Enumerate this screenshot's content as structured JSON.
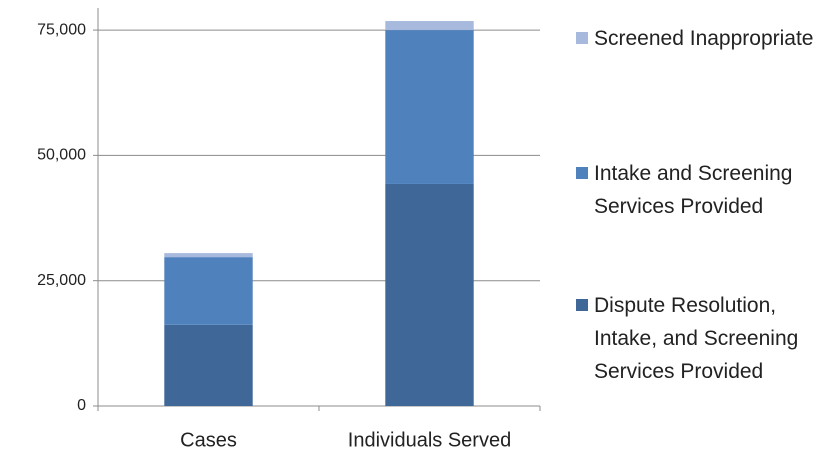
{
  "chart_data": {
    "type": "stacked_bar",
    "categories": [
      "Cases",
      "Individuals Served"
    ],
    "series": [
      {
        "name": "Dispute Resolution, Intake, and Screening Services Provided",
        "color": "#3f6797",
        "values": [
          16200,
          44300
        ]
      },
      {
        "name": "Intake and Screening Services Provided",
        "color": "#4f81bd",
        "values": [
          13500,
          30700
        ]
      },
      {
        "name": "Screened Inappropriate",
        "color": "#a7b9dc",
        "values": [
          800,
          1800
        ]
      }
    ],
    "ylim": [
      0,
      80000
    ],
    "yticks": [
      0,
      {
        "value": 25000,
        "label": "25,000"
      },
      {
        "value": 50000,
        "label": "50,000"
      },
      {
        "value": 75000,
        "label": "75,000"
      }
    ],
    "grid": true
  }
}
